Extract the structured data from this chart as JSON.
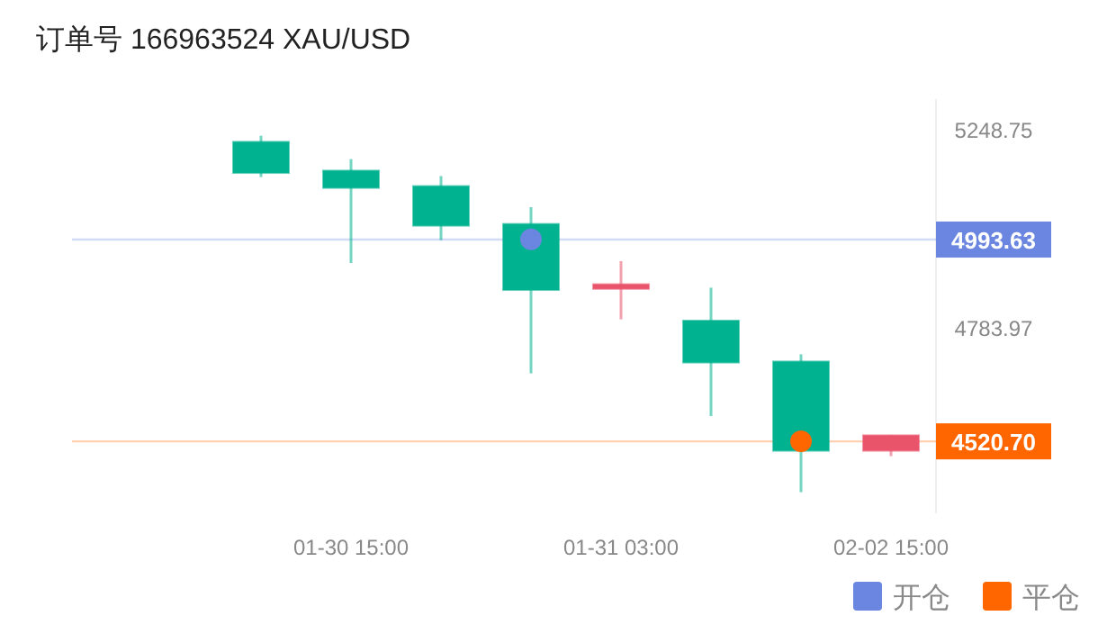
{
  "chart_data": {
    "type": "candlestick",
    "title": "订单号 166963524    XAU/USD",
    "categories": [
      null,
      "01-30 15:00",
      null,
      null,
      "01-31 03:00",
      null,
      null,
      "02-02 15:00"
    ],
    "ohlc": [
      [
        5222.8,
        5237.1,
        5140.1,
        5149.8
      ],
      [
        5155.3,
        5182.3,
        4938.8,
        5114.7
      ],
      [
        5119.0,
        5142.6,
        4992.4,
        5026.1
      ],
      [
        5030.3,
        5069.6,
        4680.1,
        4875.5
      ],
      [
        4878,
        4943.0,
        4806.7,
        4889
      ],
      [
        4803.7,
        4880.9,
        4580.0,
        4705.4
      ],
      [
        4707.9,
        4724.8,
        4401.6,
        4498.6
      ],
      [
        4498.6,
        4534.9,
        4486.0,
        4534.9
      ]
    ],
    "colors": [
      "#00b28f",
      "#00b28f",
      "#00b28f",
      "#00b28f",
      "#e9546b",
      "#00b28f",
      "#00b28f",
      "#e9546b"
    ],
    "ylim": [
      4352,
      5323
    ],
    "yticks": [
      5248.75,
      4993.63,
      4783.97,
      {
        "value": 4520.7,
        "label": "4520.70"
      }
    ],
    "grid": false,
    "ref_lines": [
      {
        "axis": "y",
        "value": 4993.63,
        "color": "#6b86e0"
      },
      {
        "axis": "y",
        "value": 4520.7,
        "color": "#ff6600"
      }
    ],
    "series": [
      {
        "name": "开仓",
        "type": "scatter",
        "color": "#6b86e0",
        "values": [
          null,
          null,
          null,
          4994,
          null,
          null,
          null,
          null
        ]
      },
      {
        "name": "平仓",
        "type": "scatter",
        "color": "#ff6600",
        "values": [
          null,
          null,
          null,
          null,
          null,
          null,
          4521,
          null
        ]
      }
    ],
    "marker": "circle",
    "legend": "bottom right"
  }
}
